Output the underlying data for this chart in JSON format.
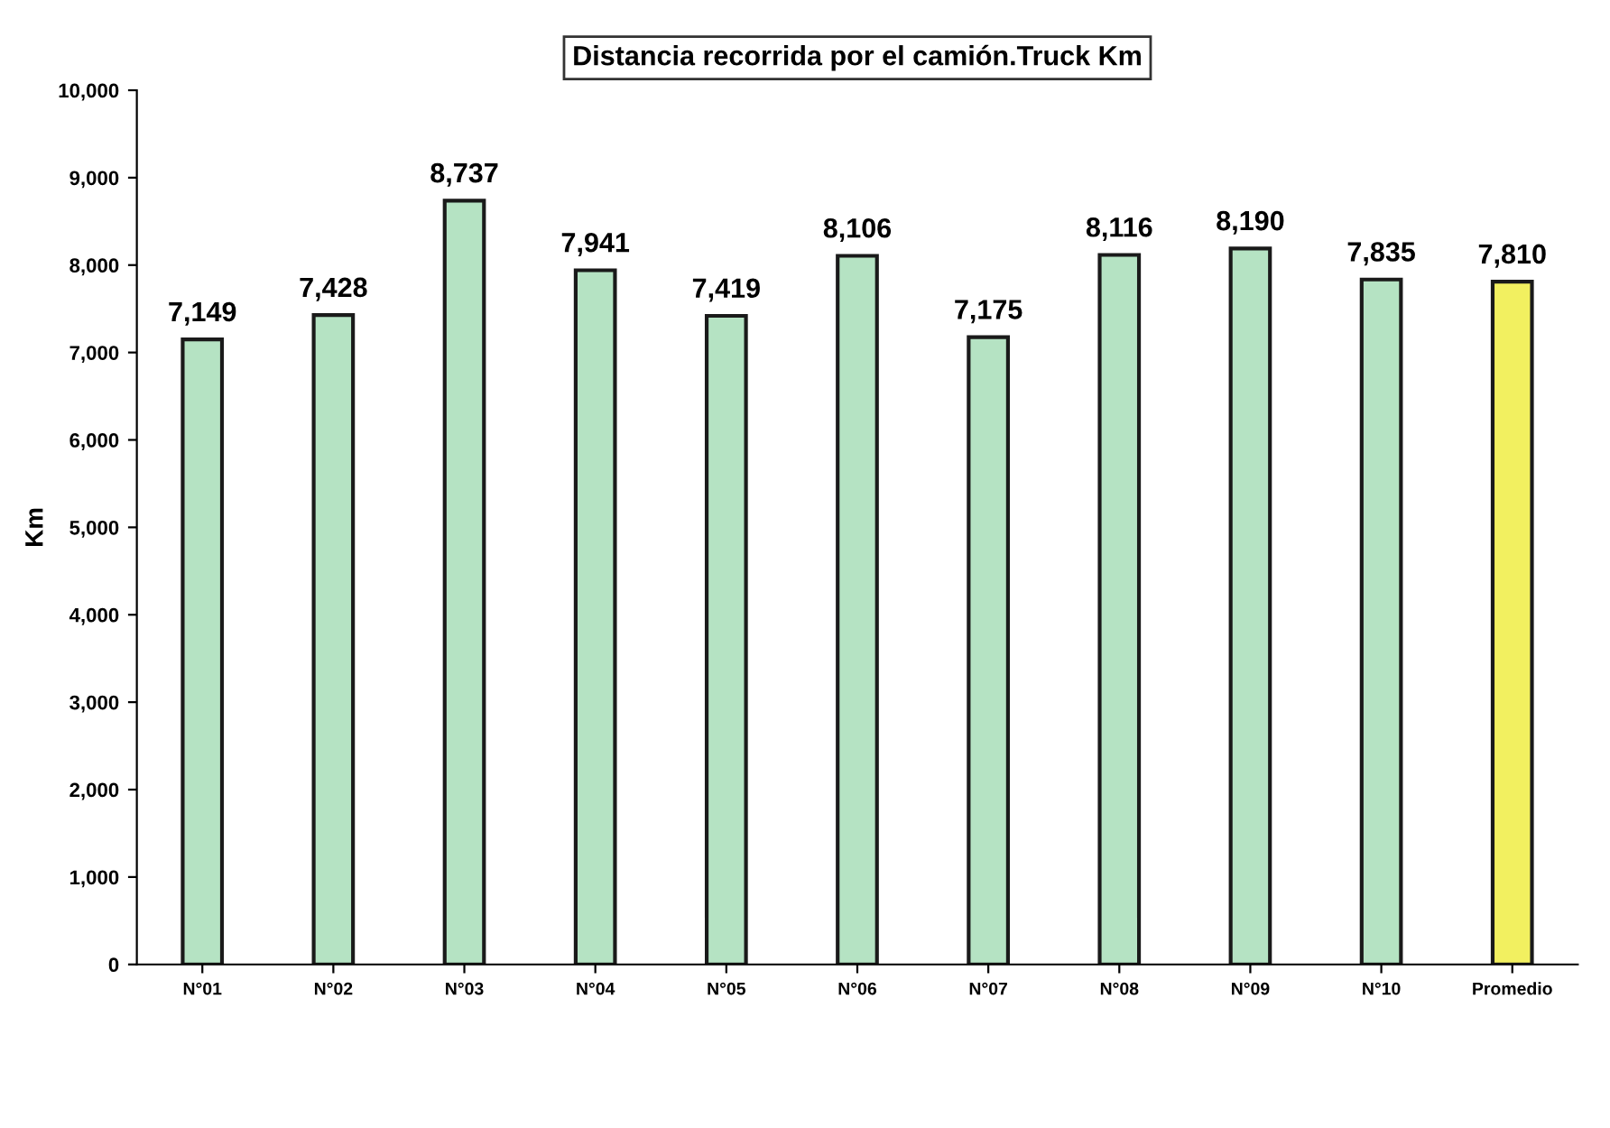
{
  "chart_data": {
    "type": "bar",
    "title": "Distancia recorrida por el camión.Truck Km",
    "ylabel": "Km",
    "categories": [
      "N°01",
      "N°02",
      "N°03",
      "N°04",
      "N°05",
      "N°06",
      "N°07",
      "N°08",
      "N°09",
      "N°10",
      "Promedio"
    ],
    "values": [
      7149,
      7428,
      8737,
      7941,
      7419,
      8106,
      7175,
      8116,
      8190,
      7835,
      7810
    ],
    "colors": [
      "#b5e3c3",
      "#b5e3c3",
      "#b5e3c3",
      "#b5e3c3",
      "#b5e3c3",
      "#b5e3c3",
      "#b5e3c3",
      "#b5e3c3",
      "#b5e3c3",
      "#b5e3c3",
      "#f2f060"
    ],
    "ylim": [
      0,
      10000
    ],
    "yticks": [
      {
        "value": 0,
        "label": "0"
      },
      {
        "value": 1000,
        "label": "1,000"
      },
      {
        "value": 2000,
        "label": "2,000"
      },
      {
        "value": 3000,
        "label": "3,000"
      },
      {
        "value": 4000,
        "label": "4,000"
      },
      {
        "value": 5000,
        "label": "5,000"
      },
      {
        "value": 6000,
        "label": "6,000"
      },
      {
        "value": 7000,
        "label": "7,000"
      },
      {
        "value": 8000,
        "label": "8,000"
      },
      {
        "value": 9000,
        "label": "9,000"
      },
      {
        "value": 10000,
        "label": "10,000"
      }
    ],
    "value_labels": [
      "7,149",
      "7,428",
      "8,737",
      "7,941",
      "7,419",
      "8,106",
      "7,175",
      "8,116",
      "8,190",
      "7,835",
      "7,810"
    ],
    "grid": false,
    "legend": false
  }
}
